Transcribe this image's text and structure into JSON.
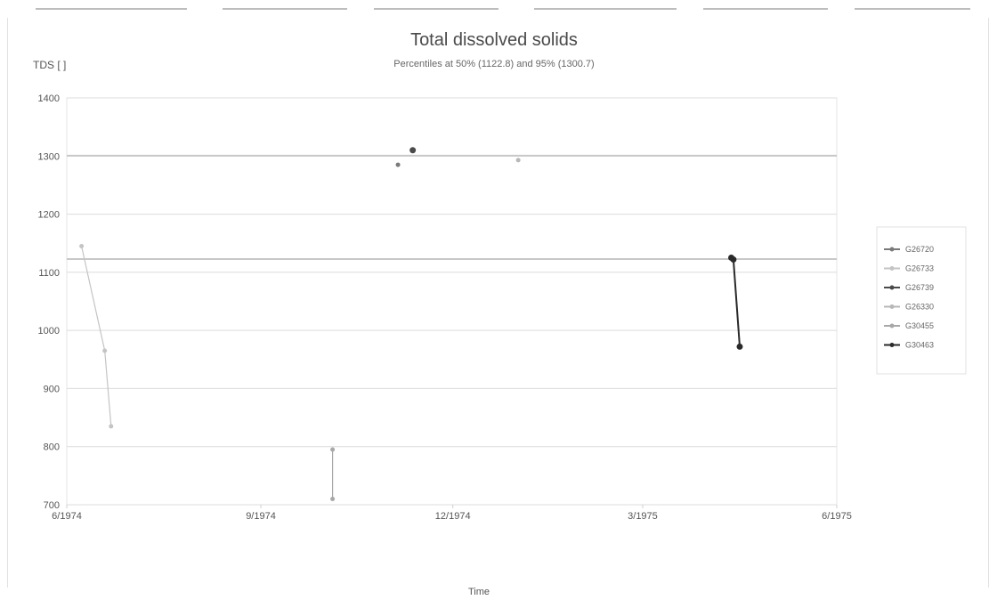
{
  "chart_data": {
    "type": "line",
    "title": "Total dissolved solids",
    "subtitle": "Percentiles at 50% (1122.8) and 95% (1300.7)",
    "ylabel": "TDS [ ]",
    "xlabel": "Time",
    "ylim": [
      700,
      1400
    ],
    "y_ticks": [
      700,
      800,
      900,
      1000,
      1100,
      1200,
      1300,
      1400
    ],
    "x_ticks": [
      "6/1974",
      "9/1974",
      "12/1974",
      "3/1975",
      "6/1975"
    ],
    "xlim": [
      "1974-06-01",
      "1975-06-01"
    ],
    "reference_lines": [
      {
        "label": "50%",
        "value": 1122.8
      },
      {
        "label": "95%",
        "value": 1300.7
      }
    ],
    "grid": true,
    "legend_position": "right",
    "series": [
      {
        "name": "G26720",
        "color": "#7a7a7a",
        "points": [
          {
            "x": "1974-11-05",
            "y": 1285
          }
        ]
      },
      {
        "name": "G26733",
        "color": "#c4c4c4",
        "points": [
          {
            "x": "1974-06-08",
            "y": 1145
          },
          {
            "x": "1974-06-19",
            "y": 965
          },
          {
            "x": "1974-06-22",
            "y": 835
          }
        ]
      },
      {
        "name": "G26739",
        "color": "#4a4a4a",
        "points": [
          {
            "x": "1974-11-12",
            "y": 1310
          }
        ]
      },
      {
        "name": "G26330",
        "color": "#b8b8b8",
        "points": [
          {
            "x": "1975-01-01",
            "y": 1293
          }
        ]
      },
      {
        "name": "G30455",
        "color": "#a8a8a8",
        "points": [
          {
            "x": "1974-10-05",
            "y": 795
          },
          {
            "x": "1974-10-05",
            "y": 710
          }
        ]
      },
      {
        "name": "G30463",
        "color": "#2a2a2a",
        "points": [
          {
            "x": "1975-04-12",
            "y": 1125
          },
          {
            "x": "1975-04-13",
            "y": 1122
          },
          {
            "x": "1975-04-16",
            "y": 972
          }
        ]
      }
    ]
  }
}
